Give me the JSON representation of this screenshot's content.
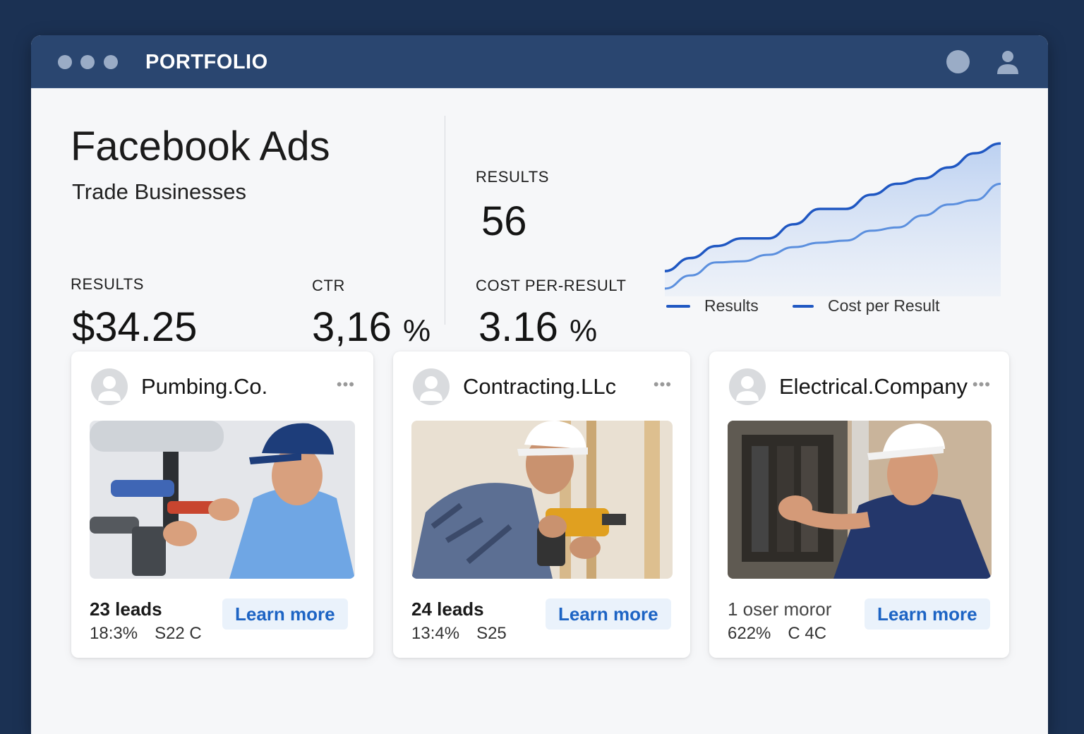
{
  "window": {
    "title": "PORTFOLIO"
  },
  "header": {
    "title": "Facebook Ads",
    "subtitle": "Trade Businesses"
  },
  "metrics": {
    "results_spend": {
      "label": "RESULTS",
      "value": "$34.25"
    },
    "ctr": {
      "label": "CTR",
      "value": "3,16",
      "unit": "%"
    },
    "results": {
      "label": "RESULTS",
      "value": "56"
    },
    "cost_per_result": {
      "label": "COST PER-RESULT",
      "value": "3.16",
      "unit": "%"
    }
  },
  "colors": {
    "background": "#1b3153",
    "titlebar": "#2a4670",
    "accent": "#1d64c4",
    "series_results": "#1f57c2",
    "series_cost": "#5b8fde"
  },
  "chart_data": {
    "type": "area",
    "title": "",
    "xlabel": "",
    "ylabel": "",
    "grid": false,
    "legend": "bottom",
    "x": [
      0,
      1,
      2,
      3,
      4,
      5,
      6,
      7,
      8,
      9,
      10,
      11,
      12,
      13
    ],
    "series": [
      {
        "name": "Results",
        "values": [
          18,
          30,
          41,
          48,
          48,
          61,
          75,
          75,
          88,
          98,
          103,
          113,
          126,
          135
        ]
      },
      {
        "name": "Cost per Result",
        "values": [
          2,
          14,
          26,
          27,
          33,
          40,
          44,
          46,
          55,
          58,
          69,
          79,
          83,
          98
        ]
      }
    ],
    "ylim": [
      0,
      150
    ]
  },
  "cards": [
    {
      "name": "Pumbing.Co.",
      "more": "•••",
      "photo": "plumber-photo",
      "leads": "23 leads",
      "stat1": "18:3%",
      "stat2": "S22 C",
      "button": "Learn more"
    },
    {
      "name": "Contracting.LLc",
      "more": "•••",
      "photo": "contractor-photo",
      "leads": "24 leads",
      "stat1": "13:4%",
      "stat2": "S25",
      "button": "Learn more"
    },
    {
      "name": "Electrical.Company",
      "more": "•••",
      "photo": "electrician-photo",
      "leads": "1 oser moror",
      "stat1": "622%",
      "stat2": "C 4C",
      "button": "Learn more"
    }
  ]
}
